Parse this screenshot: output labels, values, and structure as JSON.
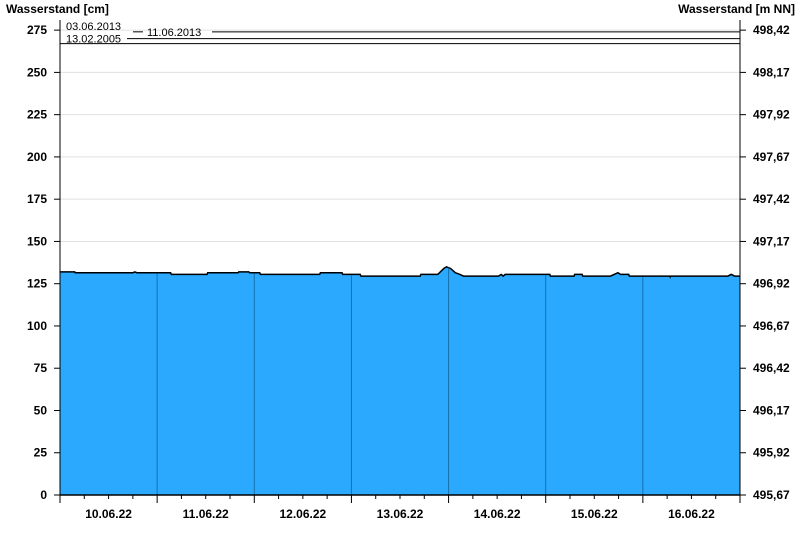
{
  "chart_data": {
    "type": "area",
    "title": "",
    "ylabel_left": "Wasserstand [cm]",
    "ylabel_right": "Wasserstand [m NN]",
    "xlim": [
      "10.06.22 00:00",
      "17.06.22 00:00"
    ],
    "ylim": [
      0,
      281
    ],
    "y_ticks": [
      0,
      25,
      50,
      75,
      100,
      125,
      150,
      175,
      200,
      225,
      250,
      275
    ],
    "y_right_ticks": [
      "495,67",
      "495,92",
      "496,17",
      "496,42",
      "496,67",
      "496,92",
      "497,17",
      "497,42",
      "497,67",
      "497,92",
      "498,17",
      "498,42"
    ],
    "x_tick_labels": [
      "10.06.22",
      "11.06.22",
      "12.06.22",
      "13.06.22",
      "14.06.22",
      "15.06.22",
      "16.06.22"
    ],
    "grid": true,
    "fill_color": "#2aa9ff",
    "reference_marks": [
      {
        "label": "11.06.2013",
        "value": 274
      },
      {
        "label": "03.06.2013",
        "value": 270
      },
      {
        "label": "13.02.2005",
        "value": 267
      }
    ],
    "series": [
      {
        "points": [
          [
            "10.06.22 00:00",
            132
          ],
          [
            "10.06.22 03:40",
            132
          ],
          [
            "10.06.22 03:45",
            131.5
          ],
          [
            "10.06.22 18:00",
            131.5
          ],
          [
            "10.06.22 18:30",
            132
          ],
          [
            "10.06.22 19:00",
            131.5
          ],
          [
            "11.06.22 03:20",
            131.5
          ],
          [
            "11.06.22 03:30",
            130.5
          ],
          [
            "11.06.22 12:20",
            130.5
          ],
          [
            "11.06.22 12:30",
            131.5
          ],
          [
            "11.06.22 20:00",
            131.5
          ],
          [
            "11.06.22 20:10",
            132
          ],
          [
            "11.06.22 22:40",
            132
          ],
          [
            "11.06.22 22:50",
            131.5
          ],
          [
            "12.06.22 01:20",
            131.5
          ],
          [
            "12.06.22 01:30",
            130.5
          ],
          [
            "12.06.22 16:10",
            130.5
          ],
          [
            "12.06.22 16:20",
            131.5
          ],
          [
            "12.06.22 21:40",
            131.5
          ],
          [
            "12.06.22 21:50",
            130.5
          ],
          [
            "13.06.22 02:10",
            130.5
          ],
          [
            "13.06.22 02:20",
            129.5
          ],
          [
            "13.06.22 17:00",
            129.5
          ],
          [
            "13.06.22 17:10",
            130.5
          ],
          [
            "13.06.22 21:20",
            130.5
          ],
          [
            "13.06.22 22:50",
            134
          ],
          [
            "13.06.22 23:30",
            135
          ],
          [
            "14.06.22 00:30",
            134
          ],
          [
            "14.06.22 01:40",
            131.5
          ],
          [
            "14.06.22 02:50",
            130.5
          ],
          [
            "14.06.22 03:40",
            129.5
          ],
          [
            "14.06.22 12:20",
            129.5
          ],
          [
            "14.06.22 13:00",
            130.5
          ],
          [
            "14.06.22 13:30",
            129.5
          ],
          [
            "14.06.22 14:00",
            130.5
          ],
          [
            "15.06.22 01:00",
            130.5
          ],
          [
            "15.06.22 01:10",
            129.5
          ],
          [
            "15.06.22 07:00",
            129.5
          ],
          [
            "15.06.22 07:10",
            130.5
          ],
          [
            "15.06.22 09:00",
            130.5
          ],
          [
            "15.06.22 09:10",
            129.5
          ],
          [
            "15.06.22 16:00",
            129.5
          ],
          [
            "15.06.22 17:50",
            131.5
          ],
          [
            "15.06.22 18:30",
            130.5
          ],
          [
            "15.06.22 20:30",
            130.5
          ],
          [
            "15.06.22 20:40",
            129.5
          ],
          [
            "16.06.22 06:40",
            129.5
          ],
          [
            "16.06.22 06:45",
            129
          ],
          [
            "16.06.22 06:50",
            129.5
          ],
          [
            "16.06.22 21:00",
            129.5
          ],
          [
            "16.06.22 21:50",
            130.5
          ],
          [
            "16.06.22 22:40",
            129.5
          ],
          [
            "17.06.22 00:00",
            129.5
          ]
        ]
      }
    ]
  }
}
